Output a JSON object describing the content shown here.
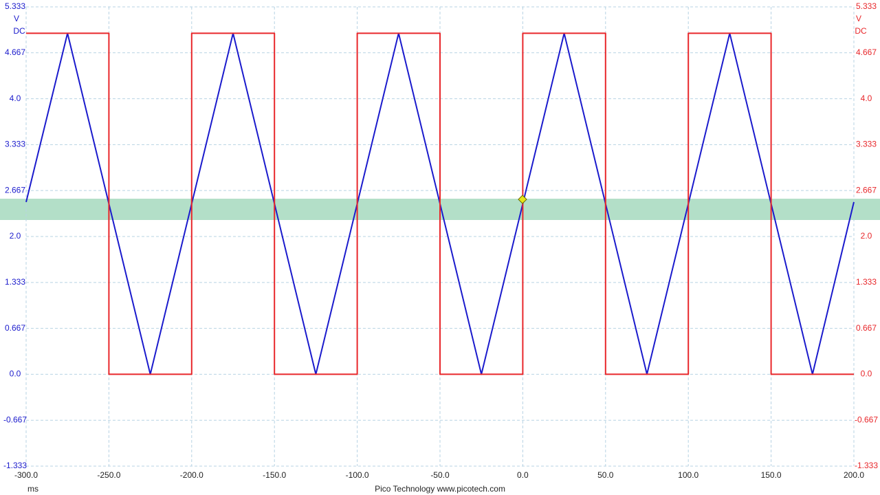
{
  "chart_data": {
    "type": "line",
    "xlim": [
      -300,
      200
    ],
    "xticks": [
      {
        "value": -300,
        "label": "-300.0"
      },
      {
        "value": -250,
        "label": "-250.0"
      },
      {
        "value": -200,
        "label": "-200.0"
      },
      {
        "value": -150,
        "label": "-150.0"
      },
      {
        "value": -100,
        "label": "-100.0"
      },
      {
        "value": -50,
        "label": "-50.0"
      },
      {
        "value": 0,
        "label": "0.0"
      },
      {
        "value": 50,
        "label": "50.0"
      },
      {
        "value": 100,
        "label": "100.0"
      },
      {
        "value": 150,
        "label": "150.0"
      },
      {
        "value": 200,
        "label": "200.0"
      }
    ],
    "x_label": "ms",
    "ylim": [
      -1.333,
      5.333
    ],
    "yticks": [
      5.333,
      4.667,
      {
        "value": 4,
        "label": "4.0"
      },
      3.333,
      2.667,
      {
        "value": 2,
        "label": "2.0"
      },
      1.333,
      0.667,
      {
        "value": 0,
        "label": "0.0"
      },
      -0.667,
      -1.333
    ],
    "y_unit": "V",
    "y_coupling": "DC",
    "y2lim": [
      -1.333,
      5.333
    ],
    "y2ticks": [
      5.333,
      4.667,
      {
        "value": 4,
        "label": "4.0"
      },
      3.333,
      2.667,
      {
        "value": 2,
        "label": "2.0"
      },
      1.333,
      0.667,
      {
        "value": 0,
        "label": "0.0"
      },
      -0.667,
      -1.333
    ],
    "y2_unit": "V",
    "y2_coupling": "DC",
    "grid": true,
    "footer": "Pico Technology  www.picotech.com",
    "series": [
      {
        "color": "#1a1acc",
        "x": [
          -300,
          -275,
          -225,
          -175,
          -125,
          -75,
          -25,
          25,
          75,
          125,
          175,
          200
        ],
        "values": [
          2.5,
          4.95,
          0,
          4.95,
          0,
          4.95,
          0,
          4.95,
          0,
          4.95,
          0,
          2.5
        ]
      },
      {
        "color": "#e8262a",
        "axis": "y2",
        "x": [
          -300,
          -250,
          -250,
          -200,
          -200,
          -150,
          -150,
          -100,
          -100,
          -50,
          -50,
          0,
          0,
          50,
          50,
          100,
          100,
          150,
          150,
          200
        ],
        "values": [
          4.95,
          4.95,
          0,
          0,
          4.95,
          4.95,
          0,
          0,
          4.95,
          4.95,
          0,
          0,
          4.95,
          4.95,
          0,
          0,
          4.95,
          4.95,
          0,
          0
        ]
      }
    ]
  }
}
